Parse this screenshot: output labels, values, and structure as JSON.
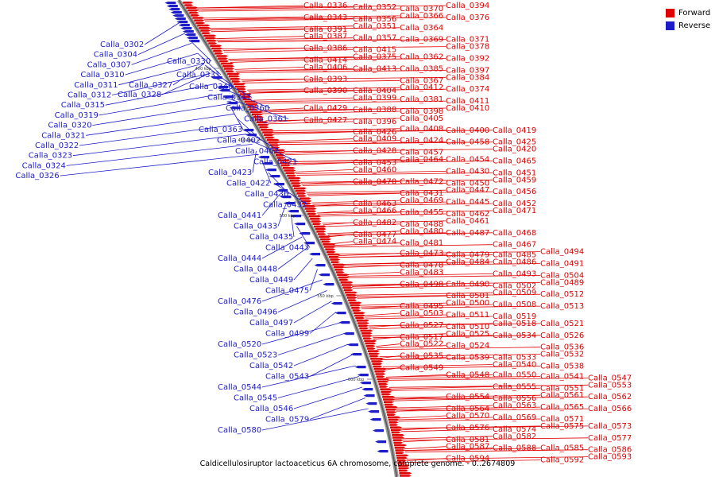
{
  "caption": "Caldicellulosiruptor lactoaceticus 6A chromosome, complete genome. - 0..2674809",
  "legend": [
    {
      "label": "Forward",
      "color": "#e00000"
    },
    {
      "label": "Reverse",
      "color": "#1c1cc8"
    }
  ],
  "ticks": [
    "400 kbp",
    "450 kbp",
    "500 kbp",
    "550 kbp",
    "600 kbp"
  ],
  "forward_genes": [
    "Calla_0336",
    "Calla_0352",
    "Calla_0370",
    "Calla_0394",
    "Calla_0343",
    "Calla_0356",
    "Calla_0366",
    "Calla_0376",
    "Calla_0391",
    "Calla_0351",
    "Calla_0364",
    "Calla_0371",
    "Calla_0387",
    "Calla_0357",
    "Calla_0369",
    "Calla_0378",
    "Calla_0386",
    "Calla_0415",
    "Calla_0362",
    "Calla_0392",
    "Calla_0414",
    "Calla_0375",
    "Calla_0385",
    "Calla_0397",
    "Calla_0406",
    "Calla_0413",
    "Calla_0367",
    "Calla_0384",
    "Calla_0393",
    "Calla_0404",
    "Calla_0412",
    "Calla_0374",
    "Calla_0390",
    "Calla_0399",
    "Calla_0381",
    "Calla_0411",
    "Calla_0429",
    "Calla_0388",
    "Calla_0398",
    "Calla_0410",
    "Calla_0427",
    "Calla_0396",
    "Calla_0405",
    "Calla_0419",
    "Calla_0426",
    "Calla_0408",
    "Calla_0400",
    "Calla_0425",
    "Calla_0409",
    "Calla_0424",
    "Calla_0458",
    "Calla_0420",
    "Calla_0428",
    "Calla_0457",
    "Calla_0454",
    "Calla_0465",
    "Calla_0453",
    "Calla_0464",
    "Calla_0430",
    "Calla_0451",
    "Calla_0460",
    "Calla_0472",
    "Calla_0450",
    "Calla_0459",
    "Calla_0470",
    "Calla_0431",
    "Calla_0447",
    "Calla_0456",
    "Calla_0463",
    "Calla_0469",
    "Calla_0445",
    "Calla_0452",
    "Calla_0466",
    "Calla_0455",
    "Calla_0462",
    "Calla_0471",
    "Calla_0482",
    "Calla_0488",
    "Calla_0461",
    "Calla_0468",
    "Calla_0477",
    "Calla_0480",
    "Calla_0487",
    "Calla_0467",
    "Calla_0474",
    "Calla_0481",
    "Calla_0485",
    "Calla_0494",
    "Calla_0473",
    "Calla_0479",
    "Calla_0486",
    "Calla_0491",
    "Calla_0478",
    "Calla_0484",
    "Calla_0493",
    "Calla_0504",
    "Calla_0483",
    "Calla_0490",
    "Calla_0502",
    "Calla_0489",
    "Calla_0498",
    "Calla_0501",
    "Calla_0509",
    "Calla_0512",
    "Calla_0495",
    "Calla_0500",
    "Calla_0508",
    "Calla_0513",
    "Calla_0503",
    "Calla_0511",
    "Calla_0519",
    "Calla_0521",
    "Calla_0527",
    "Calla_0510",
    "Calla_0518",
    "Calla_0526",
    "Calla_0517",
    "Calla_0525",
    "Calla_0534",
    "Calla_0536",
    "Calla_0522",
    "Calla_0524",
    "Calla_0533",
    "Calla_0532",
    "Calla_0535",
    "Calla_0539",
    "Calla_0540",
    "Calla_0538",
    "Calla_0549",
    "Calla_0550",
    "Calla_0541",
    "Calla_0547",
    "Calla_0548",
    "Calla_0555",
    "Calla_0551",
    "Calla_0553",
    "Calla_0554",
    "Calla_0556",
    "Calla_0561",
    "Calla_0562",
    "Calla_0564",
    "Calla_0563",
    "Calla_0565",
    "Calla_0566",
    "Calla_0570",
    "Calla_0569",
    "Calla_0571",
    "Calla_0573",
    "Calla_0576",
    "Calla_0574",
    "Calla_0575",
    "Calla_0577",
    "Calla_0581",
    "Calla_0582",
    "Calla_0585",
    "Calla_0586",
    "Calla_0587",
    "Calla_0588",
    "Calla_0592",
    "Calla_0593",
    "Calla_0594"
  ],
  "reverse_genes": [
    "Calla_0302",
    "Calla_0304",
    "Calla_0307",
    "Calla_0310",
    "Calla_0311",
    "Calla_0312",
    "Calla_0315",
    "Calla_0319",
    "Calla_0320",
    "Calla_0321",
    "Calla_0322",
    "Calla_0323",
    "Calla_0324",
    "Calla_0326",
    "Calla_0330",
    "Calla_0331",
    "Calla_0327",
    "Calla_0328",
    "Calla_0346",
    "Calla_0347",
    "Calla_0360",
    "Calla_0361",
    "Calla_0363",
    "Calla_0402",
    "Calla_0407",
    "Calla_0421",
    "Calla_0423",
    "Calla_0422",
    "Calla_0436",
    "Calla_0432",
    "Calla_0441",
    "Calla_0433",
    "Calla_0435",
    "Calla_0443",
    "Calla_0444",
    "Calla_0448",
    "Calla_0449",
    "Calla_0475",
    "Calla_0476",
    "Calla_0496",
    "Calla_0497",
    "Calla_0499",
    "Calla_0520",
    "Calla_0523",
    "Calla_0542",
    "Calla_0543",
    "Calla_0544",
    "Calla_0545",
    "Calla_0546",
    "Calla_0579",
    "Calla_0580"
  ]
}
